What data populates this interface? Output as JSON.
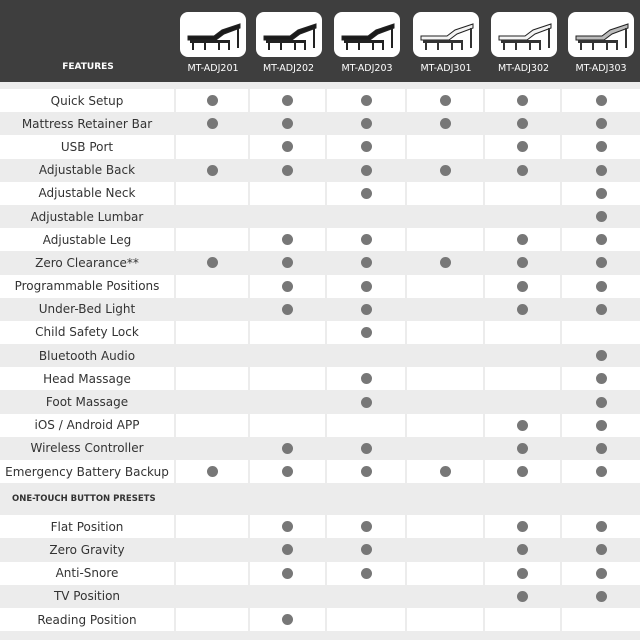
{
  "header": {
    "features_label": "FEATURES",
    "products": [
      {
        "name": "MT-ADJ201",
        "image": "adjustable-base-black"
      },
      {
        "name": "MT-ADJ202",
        "image": "adjustable-base-black"
      },
      {
        "name": "MT-ADJ203",
        "image": "adjustable-base-black"
      },
      {
        "name": "MT-ADJ301",
        "image": "adjustable-base-white"
      },
      {
        "name": "MT-ADJ302",
        "image": "adjustable-base-white"
      },
      {
        "name": "MT-ADJ303",
        "image": "adjustable-base-gray"
      }
    ]
  },
  "colors": {
    "header_bg": "#3e3e3e",
    "dot": "#777777",
    "alt_row": "#ececec"
  },
  "features": [
    {
      "label": "Quick Setup",
      "has": [
        1,
        1,
        1,
        1,
        1,
        1
      ]
    },
    {
      "label": "Mattress Retainer Bar",
      "has": [
        1,
        1,
        1,
        1,
        1,
        1
      ]
    },
    {
      "label": "USB Port",
      "has": [
        0,
        1,
        1,
        0,
        1,
        1
      ]
    },
    {
      "label": "Adjustable Back",
      "has": [
        1,
        1,
        1,
        1,
        1,
        1
      ]
    },
    {
      "label": "Adjustable Neck",
      "has": [
        0,
        0,
        1,
        0,
        0,
        1
      ]
    },
    {
      "label": "Adjustable Lumbar",
      "has": [
        0,
        0,
        0,
        0,
        0,
        1
      ]
    },
    {
      "label": "Adjustable Leg",
      "has": [
        0,
        1,
        1,
        0,
        1,
        1
      ]
    },
    {
      "label": "Zero Clearance**",
      "has": [
        1,
        1,
        1,
        1,
        1,
        1
      ]
    },
    {
      "label": "Programmable Positions",
      "has": [
        0,
        1,
        1,
        0,
        1,
        1
      ]
    },
    {
      "label": "Under-Bed Light",
      "has": [
        0,
        1,
        1,
        0,
        1,
        1
      ]
    },
    {
      "label": "Child Safety Lock",
      "has": [
        0,
        0,
        1,
        0,
        0,
        0
      ]
    },
    {
      "label": "Bluetooth Audio",
      "has": [
        0,
        0,
        0,
        0,
        0,
        1
      ]
    },
    {
      "label": "Head Massage",
      "has": [
        0,
        0,
        1,
        0,
        0,
        1
      ]
    },
    {
      "label": "Foot Massage",
      "has": [
        0,
        0,
        1,
        0,
        0,
        1
      ]
    },
    {
      "label": "iOS / Android APP",
      "has": [
        0,
        0,
        0,
        0,
        1,
        1
      ]
    },
    {
      "label": "Wireless Controller",
      "has": [
        0,
        1,
        1,
        0,
        1,
        1
      ]
    },
    {
      "label": "Emergency Battery Backup",
      "has": [
        1,
        1,
        1,
        1,
        1,
        1
      ]
    }
  ],
  "presets_section": {
    "title": "ONE-TOUCH BUTTON PRESETS",
    "rows": [
      {
        "label": "Flat Position",
        "has": [
          0,
          1,
          1,
          0,
          1,
          1
        ]
      },
      {
        "label": "Zero Gravity",
        "has": [
          0,
          1,
          1,
          0,
          1,
          1
        ]
      },
      {
        "label": "Anti-Snore",
        "has": [
          0,
          1,
          1,
          0,
          1,
          1
        ]
      },
      {
        "label": "TV Position",
        "has": [
          0,
          0,
          0,
          0,
          1,
          1
        ]
      },
      {
        "label": "Reading Position",
        "has": [
          0,
          1,
          0,
          0,
          0,
          0
        ]
      }
    ]
  }
}
